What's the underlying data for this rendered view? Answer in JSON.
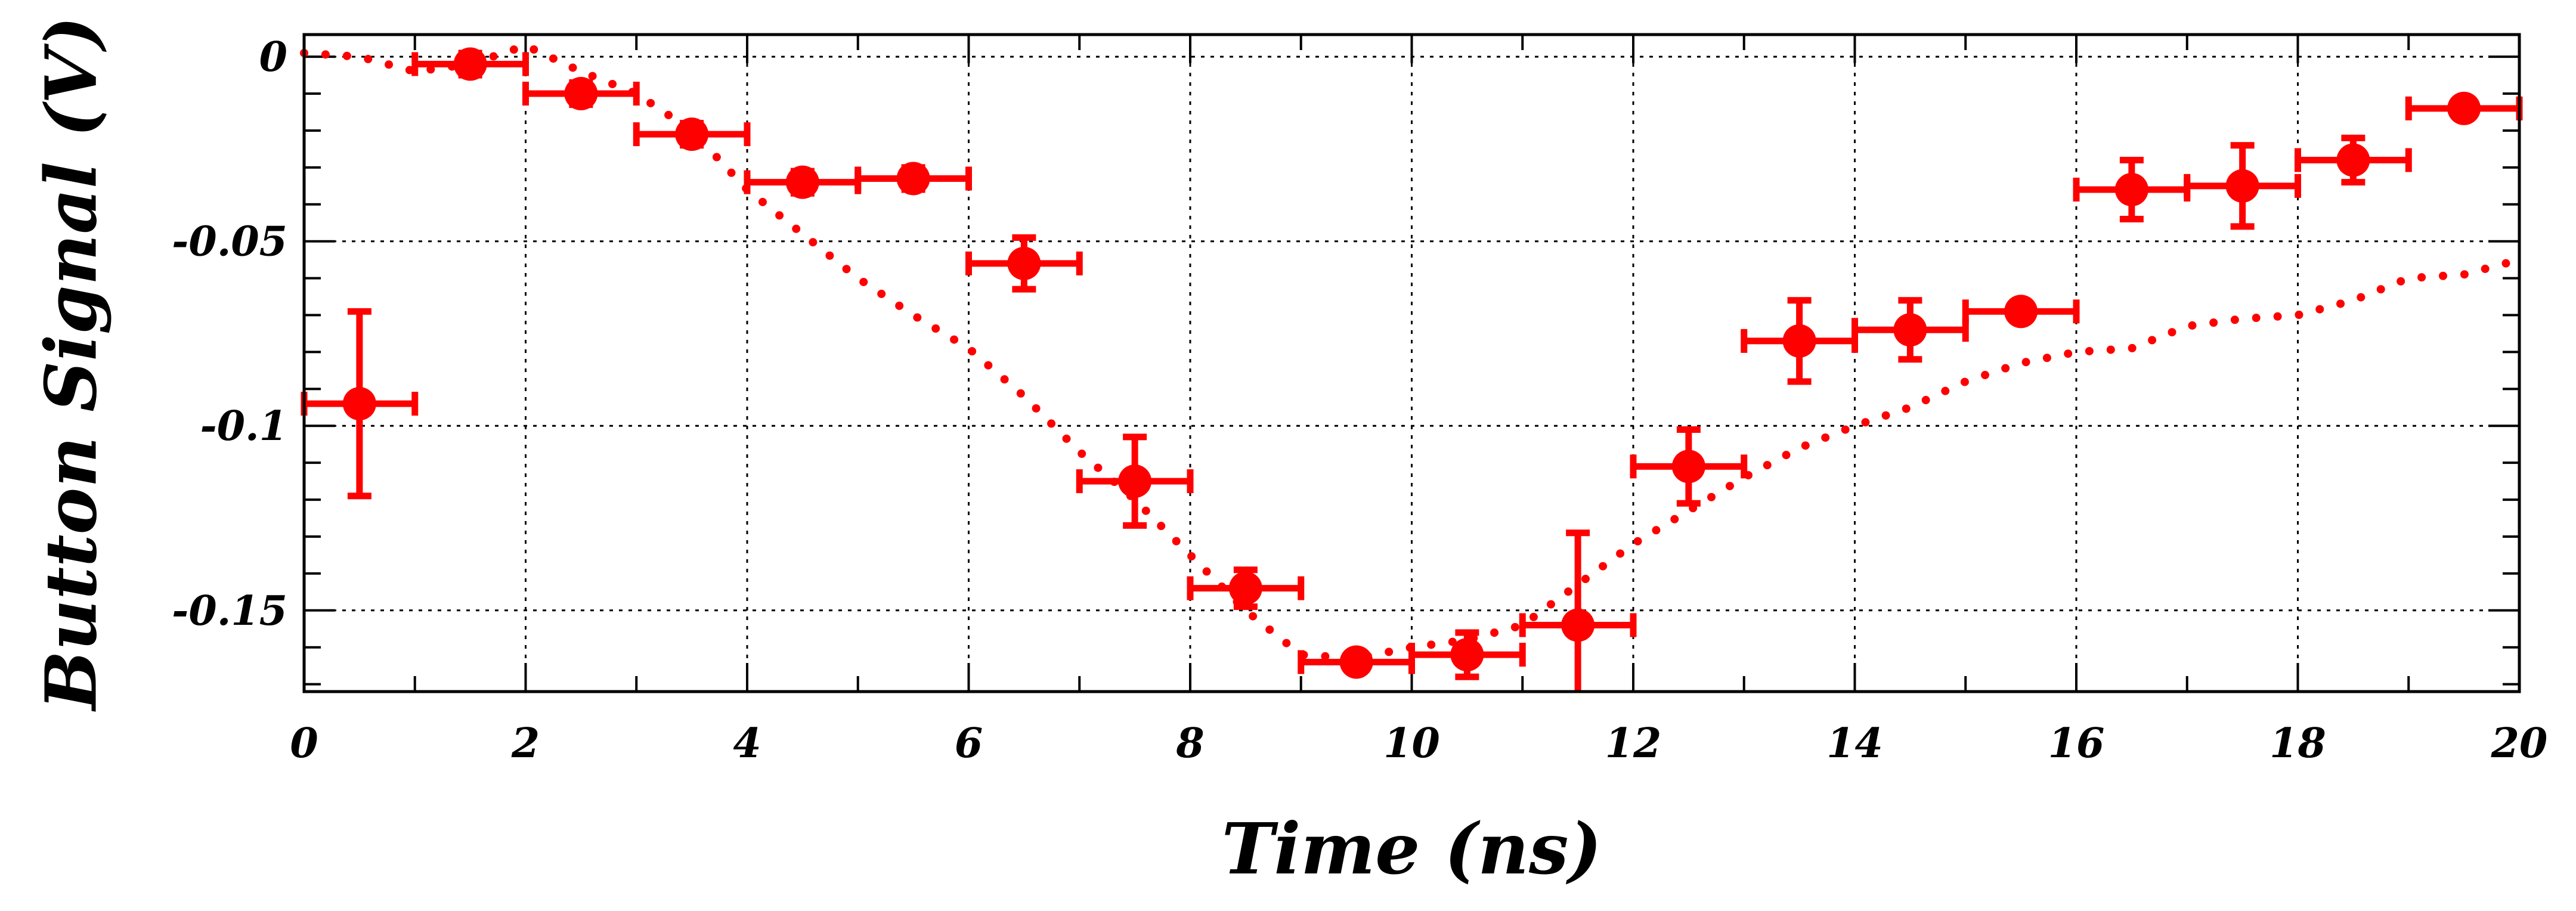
{
  "chart_data": {
    "type": "scatter",
    "xlabel": "Time (ns)",
    "ylabel": "Button Signal (V)",
    "xlim": [
      0,
      20
    ],
    "ylim": [
      -0.172,
      0.006
    ],
    "x_ticks": [
      0,
      2,
      4,
      6,
      8,
      10,
      12,
      14,
      16,
      18,
      20
    ],
    "x_tick_labels": [
      "0",
      "2",
      "4",
      "6",
      "8",
      "10",
      "12",
      "14",
      "16",
      "18",
      "20"
    ],
    "y_ticks": [
      0,
      -0.05,
      -0.1,
      -0.15
    ],
    "y_tick_labels": [
      "0",
      "-0.05",
      "-0.1",
      "-0.15"
    ],
    "grid": true,
    "color": "#ff0000",
    "series": [
      {
        "style": "markers-with-errorbars",
        "points": [
          {
            "x": 0.5,
            "y": -0.094,
            "xerr": 0.5,
            "yerr": 0.025
          },
          {
            "x": 1.5,
            "y": -0.002,
            "xerr": 0.5,
            "yerr": 0.003
          },
          {
            "x": 2.5,
            "y": -0.01,
            "xerr": 0.5,
            "yerr": 0.003
          },
          {
            "x": 3.5,
            "y": -0.021,
            "xerr": 0.5,
            "yerr": 0.003
          },
          {
            "x": 4.5,
            "y": -0.034,
            "xerr": 0.5,
            "yerr": 0.003
          },
          {
            "x": 5.5,
            "y": -0.033,
            "xerr": 0.5,
            "yerr": 0.003
          },
          {
            "x": 6.5,
            "y": -0.056,
            "xerr": 0.5,
            "yerr": 0.007
          },
          {
            "x": 7.5,
            "y": -0.115,
            "xerr": 0.5,
            "yerr": 0.012
          },
          {
            "x": 8.5,
            "y": -0.144,
            "xerr": 0.5,
            "yerr": 0.005
          },
          {
            "x": 9.5,
            "y": -0.164,
            "xerr": 0.5,
            "yerr": 0.002
          },
          {
            "x": 10.5,
            "y": -0.162,
            "xerr": 0.5,
            "yerr": 0.006
          },
          {
            "x": 11.5,
            "y": -0.154,
            "xerr": 0.5,
            "yerr": 0.025
          },
          {
            "x": 12.5,
            "y": -0.111,
            "xerr": 0.5,
            "yerr": 0.01
          },
          {
            "x": 13.5,
            "y": -0.077,
            "xerr": 0.5,
            "yerr": 0.011
          },
          {
            "x": 14.5,
            "y": -0.074,
            "xerr": 0.5,
            "yerr": 0.008
          },
          {
            "x": 15.5,
            "y": -0.069,
            "xerr": 0.5,
            "yerr": 0.002
          },
          {
            "x": 16.5,
            "y": -0.036,
            "xerr": 0.5,
            "yerr": 0.008
          },
          {
            "x": 17.5,
            "y": -0.035,
            "xerr": 0.5,
            "yerr": 0.011
          },
          {
            "x": 18.5,
            "y": -0.028,
            "xerr": 0.5,
            "yerr": 0.006
          },
          {
            "x": 19.5,
            "y": -0.014,
            "xerr": 0.5,
            "yerr": 0.002
          }
        ]
      },
      {
        "style": "dotted-line",
        "x": [
          0,
          0.5,
          1,
          1.5,
          2,
          2.5,
          3,
          3.5,
          4,
          4.5,
          5,
          5.5,
          6,
          6.5,
          7,
          7.5,
          8,
          8.5,
          9,
          9.5,
          10,
          10.5,
          11,
          11.5,
          12,
          12.5,
          13,
          13.5,
          14,
          14.5,
          15,
          15.5,
          16,
          16.5,
          17,
          17.5,
          18,
          18.5,
          19,
          19.5,
          20
        ],
        "y": [
          0.001,
          0.0,
          -0.004,
          -0.002,
          0.003,
          -0.004,
          -0.01,
          -0.02,
          -0.036,
          -0.048,
          -0.06,
          -0.07,
          -0.079,
          -0.092,
          -0.107,
          -0.12,
          -0.135,
          -0.15,
          -0.162,
          -0.163,
          -0.16,
          -0.158,
          -0.154,
          -0.143,
          -0.132,
          -0.123,
          -0.114,
          -0.106,
          -0.1,
          -0.095,
          -0.088,
          -0.083,
          -0.08,
          -0.079,
          -0.073,
          -0.071,
          -0.07,
          -0.066,
          -0.06,
          -0.059,
          -0.055
        ]
      }
    ]
  }
}
